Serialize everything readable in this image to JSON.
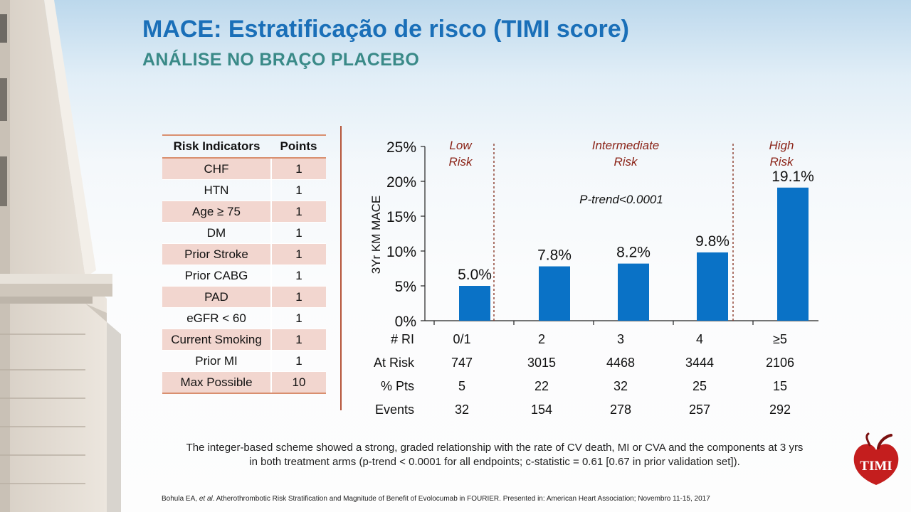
{
  "header": {
    "title": "MACE: Estratificação de risco (TIMI score)",
    "subtitle": "ANÁLISE NO BRAÇO PLACEBO"
  },
  "risk_table": {
    "columns": [
      "Risk Indicators",
      "Points"
    ],
    "rows": [
      {
        "label": "CHF",
        "points": "1"
      },
      {
        "label": "HTN",
        "points": "1"
      },
      {
        "label": "Age ≥ 75",
        "points": "1"
      },
      {
        "label": "DM",
        "points": "1"
      },
      {
        "label": "Prior Stroke",
        "points": "1"
      },
      {
        "label": "Prior CABG",
        "points": "1"
      },
      {
        "label": "PAD",
        "points": "1"
      },
      {
        "label": "eGFR < 60",
        "points": "1"
      },
      {
        "label": "Current Smoking",
        "points": "1"
      },
      {
        "label": "Prior MI",
        "points": "1"
      },
      {
        "label": "Max Possible",
        "points": "10"
      }
    ]
  },
  "chart_data": {
    "type": "bar",
    "ylabel": "3Yr KM MACE",
    "ylim": [
      0,
      25
    ],
    "yticks": [
      "0%",
      "5%",
      "10%",
      "15%",
      "20%",
      "25%"
    ],
    "categories": [
      "0/1",
      "2",
      "3",
      "4",
      "≥5"
    ],
    "values": [
      5.0,
      7.8,
      8.2,
      9.8,
      19.1
    ],
    "value_labels": [
      "5.0%",
      "7.8%",
      "8.2%",
      "9.8%",
      "19.1%"
    ],
    "bar_color": "#0a72c6",
    "risk_groups": [
      {
        "line1": "Low",
        "line2": "Risk"
      },
      {
        "line1": "Intermediate",
        "line2": "Risk"
      },
      {
        "line1": "High",
        "line2": "Risk"
      }
    ],
    "annotation": "P-trend<0.0001",
    "table_rows": [
      {
        "label": "# RI",
        "values": [
          "0/1",
          "2",
          "3",
          "4",
          "≥5"
        ]
      },
      {
        "label": "At Risk",
        "values": [
          "747",
          "3015",
          "4468",
          "3444",
          "2106"
        ]
      },
      {
        "label": "% Pts",
        "values": [
          "5",
          "22",
          "32",
          "25",
          "15"
        ]
      },
      {
        "label": "Events",
        "values": [
          "32",
          "154",
          "278",
          "257",
          "292"
        ]
      }
    ]
  },
  "caption": {
    "line1": "The integer-based scheme showed a strong, graded relationship with the rate of CV death, MI or CVA and the components at 3 yrs",
    "line2": "in both treatment arms (p-trend < 0.0001 for all endpoints; c-statistic = 0.61 [0.67 in prior validation set])."
  },
  "citation": {
    "author": "Bohula EA,",
    "etal": "et al",
    "rest": ". Atherothrombotic Risk Stratification and Magnitude of Benefit of Evolocumab in FOURIER. Presented in: American Heart Association; Novembro 11-15, 2017"
  },
  "logo": {
    "text": "TIMI",
    "colors": {
      "red": "#c41e1e",
      "dark": "#7a1010"
    }
  }
}
